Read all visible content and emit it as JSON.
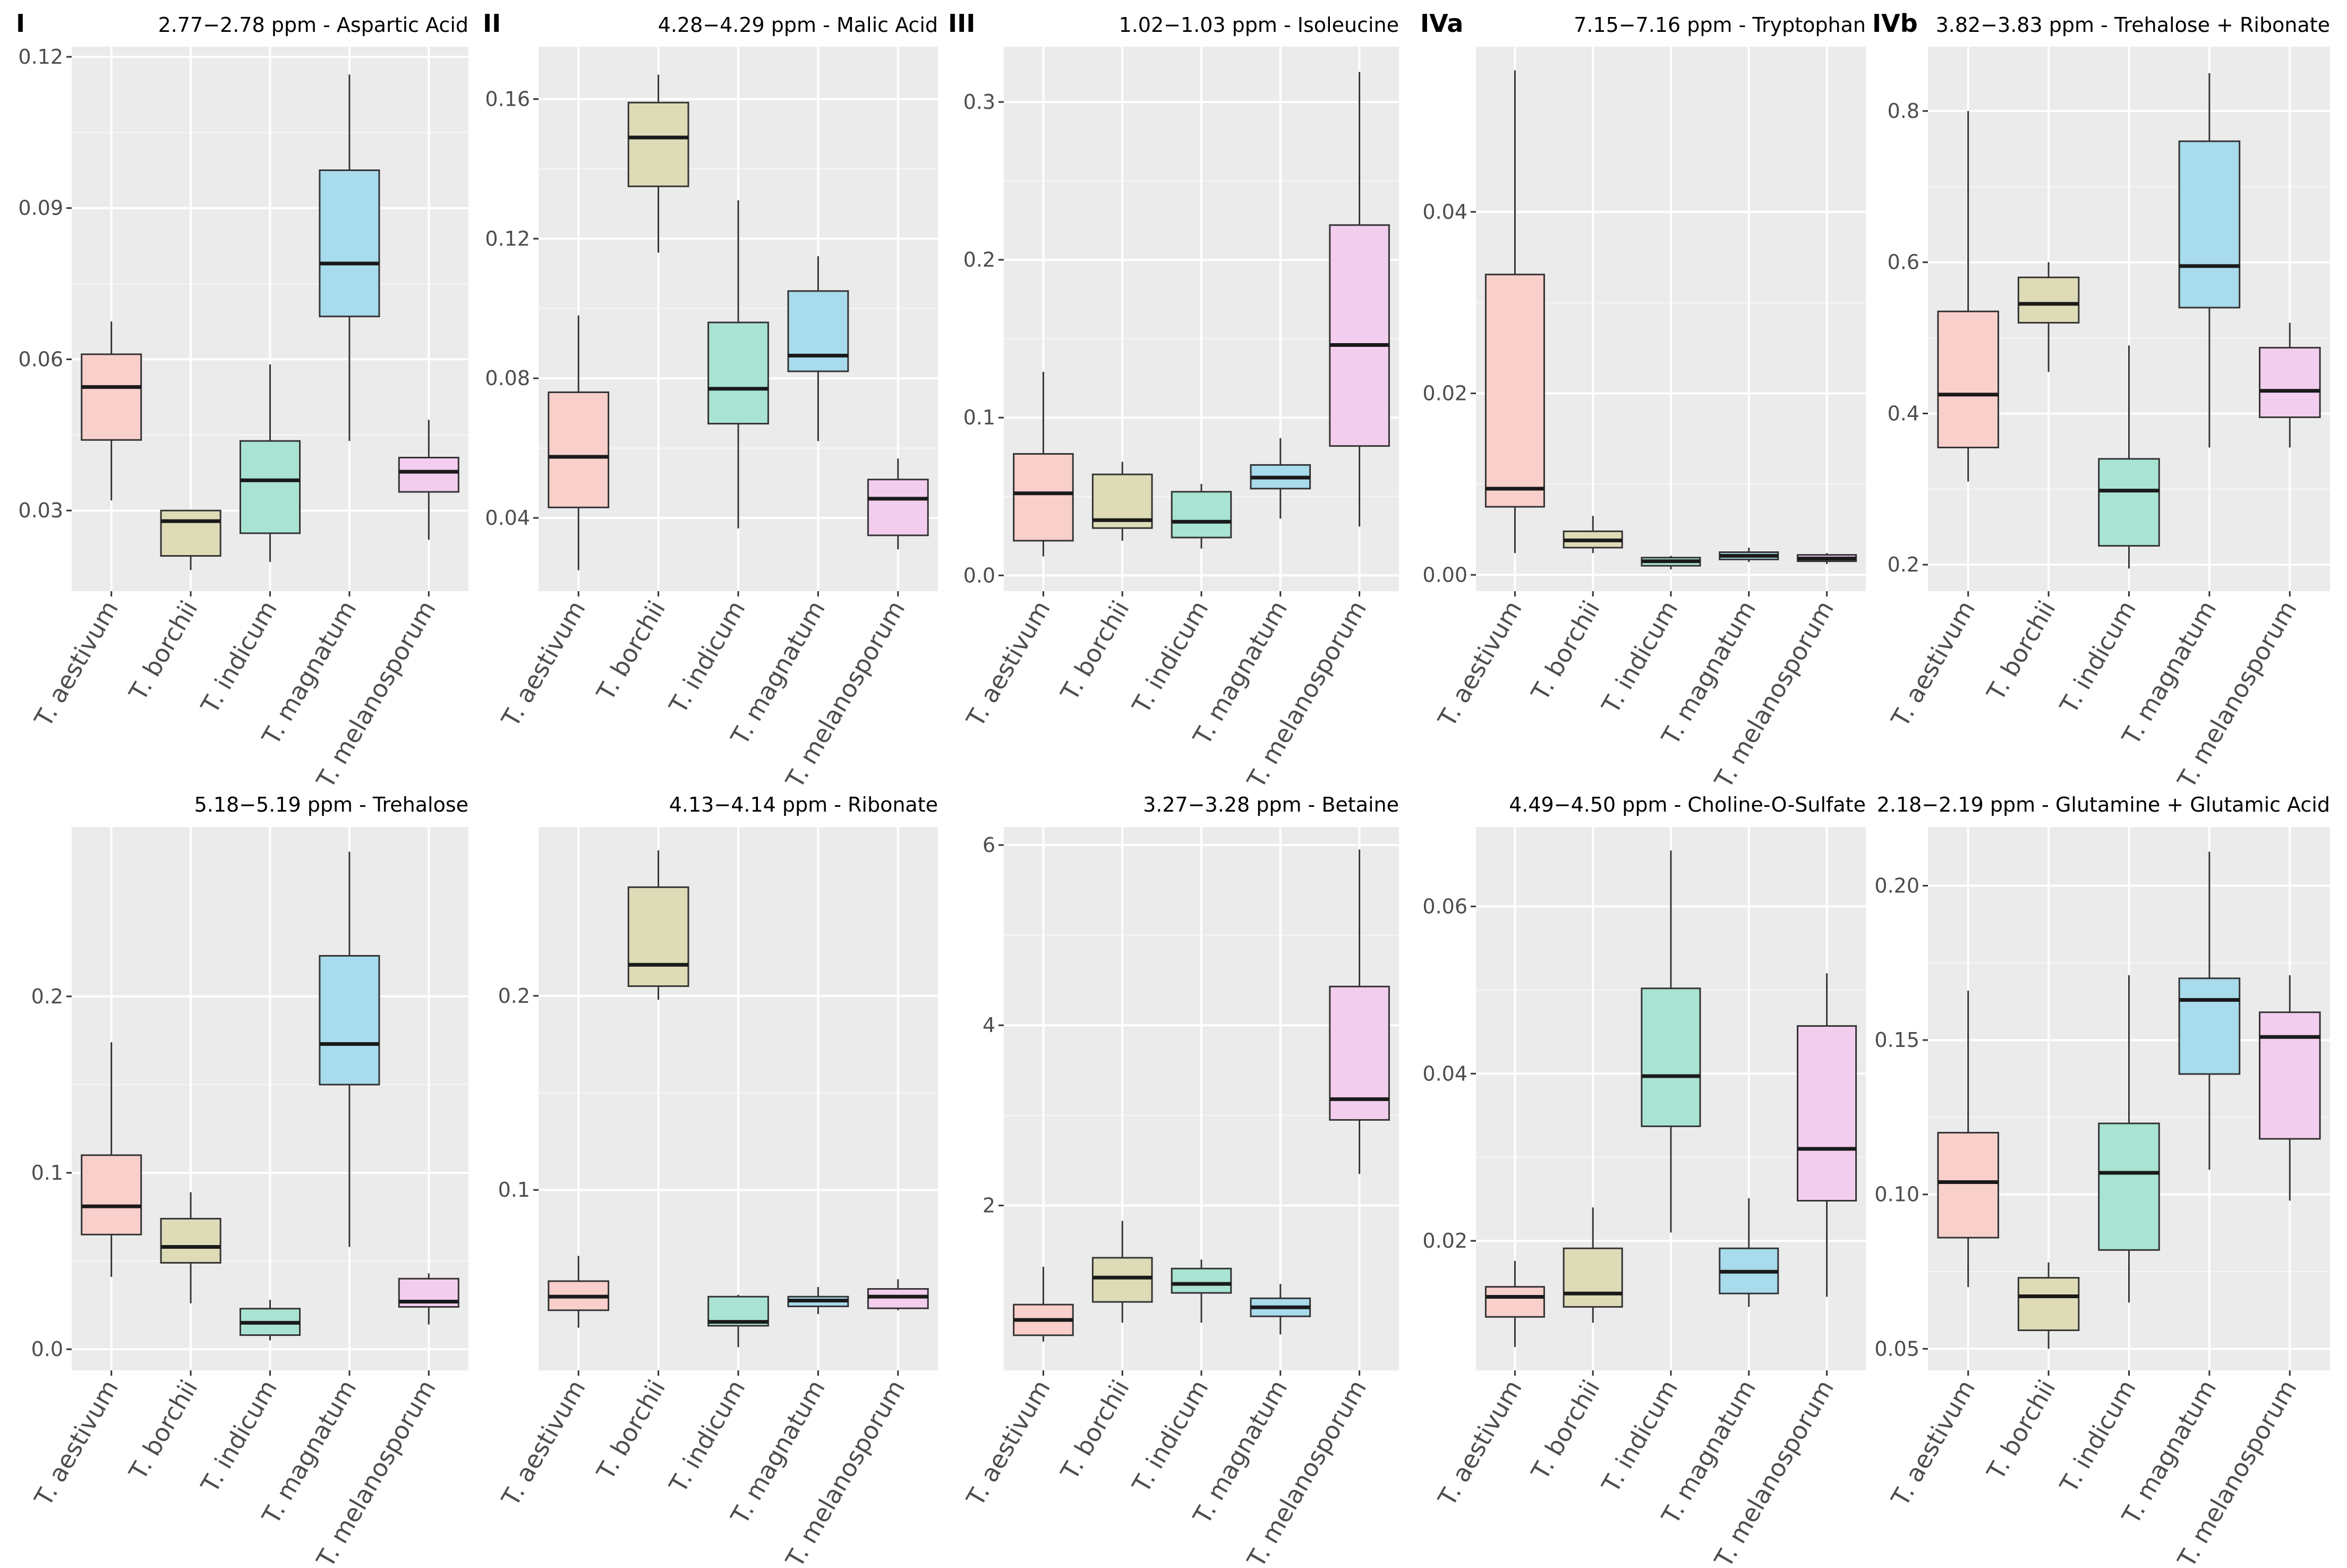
{
  "species": [
    "T. aestivum",
    "T. borchii",
    "T. indicum",
    "T. magnatum",
    "T. melanosporum"
  ],
  "colors": {
    "panel_bg": "#ebebeb",
    "grid": "#ffffff",
    "box_stroke": "#333333",
    "species_fill": [
      "#f8cfcb",
      "#dedbb7",
      "#a9e3d3",
      "#a8dbec",
      "#f3cdee"
    ],
    "text": "#000000",
    "tick_text": "#4d4d4d"
  },
  "chart_data": [
    {
      "type": "box",
      "panel_label": "I",
      "title": "2.77−2.78 ppm - Aspartic Acid",
      "ylim": [
        0.014,
        0.122
      ],
      "yticks": [
        0.03,
        0.06,
        0.09,
        0.12
      ],
      "ytick_labels": [
        "0.03",
        "0.06",
        "0.09",
        "0.12"
      ],
      "boxes": [
        {
          "lower": 0.032,
          "q1": 0.044,
          "median": 0.0545,
          "q3": 0.061,
          "upper": 0.0675
        },
        {
          "lower": 0.0182,
          "q1": 0.021,
          "median": 0.0279,
          "q3": 0.03,
          "upper": 0.03
        },
        {
          "lower": 0.0198,
          "q1": 0.0255,
          "median": 0.036,
          "q3": 0.0438,
          "upper": 0.059
        },
        {
          "lower": 0.0438,
          "q1": 0.0685,
          "median": 0.079,
          "q3": 0.0975,
          "upper": 0.1165
        },
        {
          "lower": 0.0242,
          "q1": 0.0337,
          "median": 0.0377,
          "q3": 0.0405,
          "upper": 0.048
        }
      ]
    },
    {
      "type": "box",
      "panel_label": "II",
      "title": "4.28−4.29 ppm - Malic Acid",
      "ylim": [
        0.019,
        0.175
      ],
      "yticks": [
        0.04,
        0.08,
        0.12,
        0.16
      ],
      "ytick_labels": [
        "0.04",
        "0.08",
        "0.12",
        "0.16"
      ],
      "boxes": [
        {
          "lower": 0.025,
          "q1": 0.043,
          "median": 0.0575,
          "q3": 0.076,
          "upper": 0.098
        },
        {
          "lower": 0.116,
          "q1": 0.135,
          "median": 0.149,
          "q3": 0.159,
          "upper": 0.167
        },
        {
          "lower": 0.037,
          "q1": 0.067,
          "median": 0.077,
          "q3": 0.096,
          "upper": 0.131
        },
        {
          "lower": 0.062,
          "q1": 0.082,
          "median": 0.0865,
          "q3": 0.105,
          "upper": 0.115
        },
        {
          "lower": 0.031,
          "q1": 0.035,
          "median": 0.0455,
          "q3": 0.051,
          "upper": 0.057
        }
      ]
    },
    {
      "type": "box",
      "panel_label": "III",
      "title": "1.02−1.03 ppm - Isoleucine",
      "ylim": [
        -0.01,
        0.335
      ],
      "yticks": [
        0.0,
        0.1,
        0.2,
        0.3
      ],
      "ytick_labels": [
        "0.0",
        "0.1",
        "0.2",
        "0.3"
      ],
      "boxes": [
        {
          "lower": 0.012,
          "q1": 0.022,
          "median": 0.052,
          "q3": 0.077,
          "upper": 0.129
        },
        {
          "lower": 0.022,
          "q1": 0.03,
          "median": 0.035,
          "q3": 0.064,
          "upper": 0.072
        },
        {
          "lower": 0.017,
          "q1": 0.024,
          "median": 0.034,
          "q3": 0.053,
          "upper": 0.058
        },
        {
          "lower": 0.036,
          "q1": 0.055,
          "median": 0.062,
          "q3": 0.07,
          "upper": 0.087
        },
        {
          "lower": 0.031,
          "q1": 0.082,
          "median": 0.146,
          "q3": 0.222,
          "upper": 0.319
        }
      ]
    },
    {
      "type": "box",
      "panel_label": "IVa",
      "title": "7.15−7.16 ppm - Tryptophan",
      "ylim": [
        -0.0018,
        0.0582
      ],
      "yticks": [
        0.0,
        0.02,
        0.04
      ],
      "ytick_labels": [
        "0.00",
        "0.02",
        "0.04"
      ],
      "boxes": [
        {
          "lower": 0.0024,
          "q1": 0.0075,
          "median": 0.0095,
          "q3": 0.0331,
          "upper": 0.0556
        },
        {
          "lower": 0.0024,
          "q1": 0.003,
          "median": 0.0038,
          "q3": 0.0048,
          "upper": 0.0065
        },
        {
          "lower": 0.0006,
          "q1": 0.001,
          "median": 0.0015,
          "q3": 0.0019,
          "upper": 0.0021
        },
        {
          "lower": 0.0014,
          "q1": 0.0017,
          "median": 0.0021,
          "q3": 0.0025,
          "upper": 0.003
        },
        {
          "lower": 0.0012,
          "q1": 0.0015,
          "median": 0.0018,
          "q3": 0.0022,
          "upper": 0.0024
        }
      ]
    },
    {
      "type": "box",
      "panel_label": "IVb",
      "title": "3.82−3.83 ppm - Trehalose + Ribonate",
      "ylim": [
        0.165,
        0.885
      ],
      "yticks": [
        0.2,
        0.4,
        0.6,
        0.8
      ],
      "ytick_labels": [
        "0.2",
        "0.4",
        "0.6",
        "0.8"
      ],
      "boxes": [
        {
          "lower": 0.31,
          "q1": 0.355,
          "median": 0.425,
          "q3": 0.535,
          "upper": 0.8
        },
        {
          "lower": 0.455,
          "q1": 0.52,
          "median": 0.545,
          "q3": 0.58,
          "upper": 0.6
        },
        {
          "lower": 0.195,
          "q1": 0.225,
          "median": 0.298,
          "q3": 0.34,
          "upper": 0.49
        },
        {
          "lower": 0.355,
          "q1": 0.54,
          "median": 0.595,
          "q3": 0.76,
          "upper": 0.85
        },
        {
          "lower": 0.355,
          "q1": 0.395,
          "median": 0.43,
          "q3": 0.487,
          "upper": 0.52
        }
      ]
    },
    {
      "type": "box",
      "panel_label": "",
      "title": "5.18−5.19 ppm - Trehalose",
      "ylim": [
        -0.012,
        0.296
      ],
      "yticks": [
        0.0,
        0.1,
        0.2
      ],
      "ytick_labels": [
        "0.0",
        "0.1",
        "0.2"
      ],
      "boxes": [
        {
          "lower": 0.041,
          "q1": 0.065,
          "median": 0.081,
          "q3": 0.11,
          "upper": 0.174
        },
        {
          "lower": 0.026,
          "q1": 0.049,
          "median": 0.058,
          "q3": 0.074,
          "upper": 0.089
        },
        {
          "lower": 0.005,
          "q1": 0.008,
          "median": 0.015,
          "q3": 0.023,
          "upper": 0.028
        },
        {
          "lower": 0.058,
          "q1": 0.15,
          "median": 0.173,
          "q3": 0.223,
          "upper": 0.282
        },
        {
          "lower": 0.014,
          "q1": 0.024,
          "median": 0.027,
          "q3": 0.04,
          "upper": 0.043
        }
      ]
    },
    {
      "type": "box",
      "panel_label": "",
      "title": "4.13−4.14 ppm - Ribonate",
      "ylim": [
        0.007,
        0.287
      ],
      "yticks": [
        0.1,
        0.2
      ],
      "ytick_labels": [
        "0.1",
        "0.2"
      ],
      "boxes": [
        {
          "lower": 0.029,
          "q1": 0.038,
          "median": 0.045,
          "q3": 0.053,
          "upper": 0.066
        },
        {
          "lower": 0.198,
          "q1": 0.205,
          "median": 0.216,
          "q3": 0.256,
          "upper": 0.275
        },
        {
          "lower": 0.019,
          "q1": 0.03,
          "median": 0.032,
          "q3": 0.045,
          "upper": 0.046
        },
        {
          "lower": 0.036,
          "q1": 0.04,
          "median": 0.043,
          "q3": 0.045,
          "upper": 0.05
        },
        {
          "lower": 0.038,
          "q1": 0.039,
          "median": 0.045,
          "q3": 0.049,
          "upper": 0.054
        }
      ]
    },
    {
      "type": "box",
      "panel_label": "",
      "title": "3.27−3.28 ppm - Betaine",
      "ylim": [
        0.17,
        6.2
      ],
      "yticks": [
        2,
        4,
        6
      ],
      "ytick_labels": [
        "2",
        "4",
        "6"
      ],
      "boxes": [
        {
          "lower": 0.49,
          "q1": 0.56,
          "median": 0.73,
          "q3": 0.9,
          "upper": 1.32
        },
        {
          "lower": 0.7,
          "q1": 0.93,
          "median": 1.2,
          "q3": 1.42,
          "upper": 1.83
        },
        {
          "lower": 0.7,
          "q1": 1.03,
          "median": 1.13,
          "q3": 1.3,
          "upper": 1.4
        },
        {
          "lower": 0.57,
          "q1": 0.77,
          "median": 0.87,
          "q3": 0.97,
          "upper": 1.13
        },
        {
          "lower": 2.35,
          "q1": 2.95,
          "median": 3.18,
          "q3": 4.43,
          "upper": 5.95
        }
      ]
    },
    {
      "type": "box",
      "panel_label": "",
      "title": "4.49−4.50 ppm - Choline-O-Sulfate",
      "ylim": [
        0.0045,
        0.0695
      ],
      "yticks": [
        0.02,
        0.04,
        0.06
      ],
      "ytick_labels": [
        "0.02",
        "0.04",
        "0.06"
      ],
      "boxes": [
        {
          "lower": 0.0073,
          "q1": 0.0109,
          "median": 0.0133,
          "q3": 0.0145,
          "upper": 0.0176
        },
        {
          "lower": 0.0102,
          "q1": 0.0121,
          "median": 0.0137,
          "q3": 0.0191,
          "upper": 0.024
        },
        {
          "lower": 0.021,
          "q1": 0.0337,
          "median": 0.0397,
          "q3": 0.0502,
          "upper": 0.0667
        },
        {
          "lower": 0.0121,
          "q1": 0.0137,
          "median": 0.0163,
          "q3": 0.0191,
          "upper": 0.0251
        },
        {
          "lower": 0.0133,
          "q1": 0.0248,
          "median": 0.031,
          "q3": 0.0457,
          "upper": 0.052
        }
      ]
    },
    {
      "type": "box",
      "panel_label": "",
      "title": "2.18−2.19 ppm - Glutamine + Glutamic Acid",
      "ylim": [
        0.043,
        0.219
      ],
      "yticks": [
        0.05,
        0.1,
        0.15,
        0.2
      ],
      "ytick_labels": [
        "0.05",
        "0.10",
        "0.15",
        "0.20"
      ],
      "boxes": [
        {
          "lower": 0.07,
          "q1": 0.086,
          "median": 0.104,
          "q3": 0.12,
          "upper": 0.166
        },
        {
          "lower": 0.05,
          "q1": 0.056,
          "median": 0.067,
          "q3": 0.073,
          "upper": 0.078
        },
        {
          "lower": 0.065,
          "q1": 0.082,
          "median": 0.107,
          "q3": 0.123,
          "upper": 0.171
        },
        {
          "lower": 0.108,
          "q1": 0.139,
          "median": 0.163,
          "q3": 0.17,
          "upper": 0.211
        },
        {
          "lower": 0.098,
          "q1": 0.118,
          "median": 0.151,
          "q3": 0.159,
          "upper": 0.171
        }
      ]
    }
  ]
}
